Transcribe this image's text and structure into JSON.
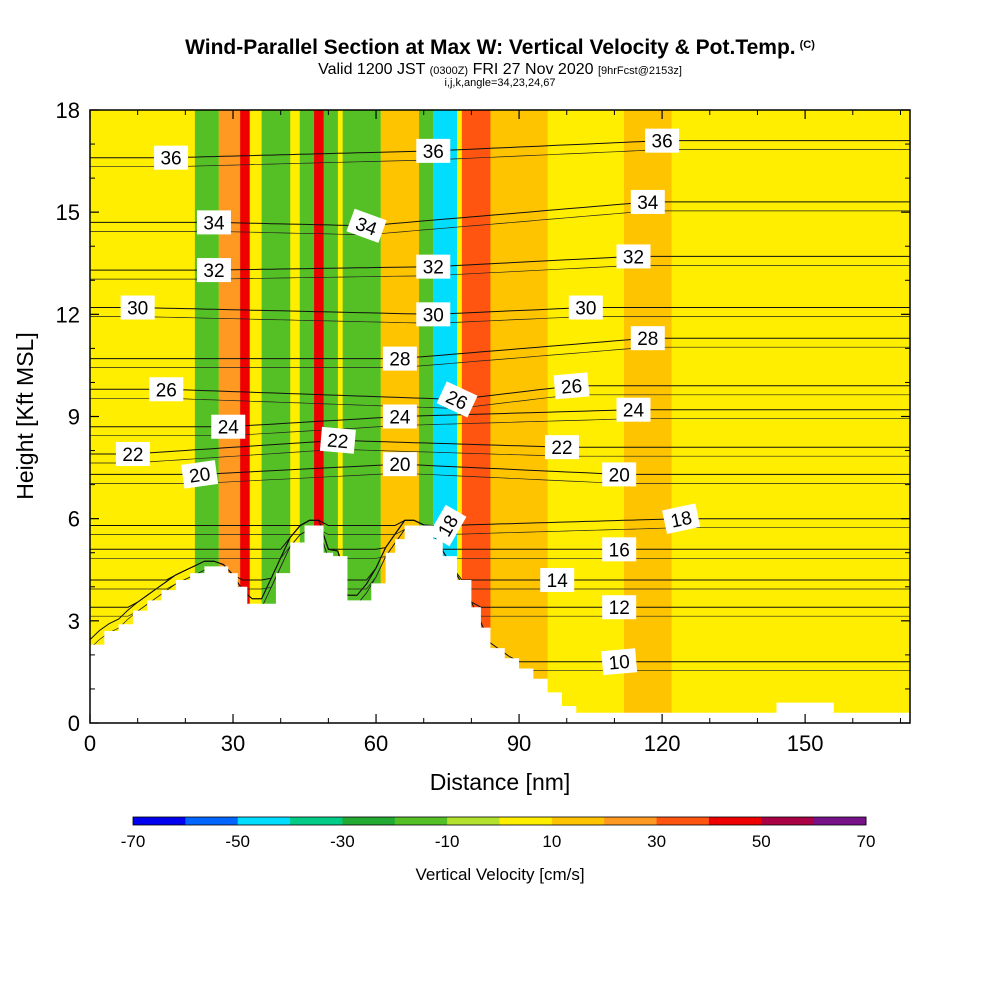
{
  "header": {
    "title": "Wind-Parallel Section at Max W: Vertical Velocity & Pot.Temp.",
    "copyright_mark": "(C)",
    "valid_prefix": "Valid 1200 JST",
    "valid_utc": "(0300Z)",
    "valid_date": "FRI 27 Nov 2020",
    "forecast_tag": "[9hrFcst@2153z]",
    "params_line": "i,j,k,angle=34,23,24,67"
  },
  "chart_data": {
    "type": "heatmap",
    "title": "Wind-Parallel Section at Max W: Vertical Velocity & Pot.Temp.",
    "xlabel": "Distance [nm]",
    "ylabel": "Height [Kft MSL]",
    "xlim": [
      0,
      172
    ],
    "ylim": [
      0,
      18
    ],
    "x_ticks": [
      "0",
      "30",
      "60",
      "90",
      "120",
      "150"
    ],
    "y_ticks": [
      "0",
      "3",
      "6",
      "9",
      "12",
      "15",
      "18"
    ],
    "colorbar": {
      "title": "Vertical Velocity [cm/s]",
      "labels": [
        "-70",
        "-50",
        "-30",
        "-10",
        "10",
        "30",
        "50",
        "70"
      ],
      "colors": [
        "#0000ee",
        "#0066ff",
        "#00ddff",
        "#00cc88",
        "#22aa33",
        "#55c025",
        "#b2e22c",
        "#ffee00",
        "#ffc400",
        "#ff9922",
        "#ff5511",
        "#ee0000",
        "#aa0044",
        "#771188"
      ]
    },
    "vertical_velocity_bands": [
      {
        "x": [
          0,
          172
        ],
        "value": 0
      },
      {
        "x": [
          27,
          33
        ],
        "value": 20
      },
      {
        "x": [
          31.5,
          33.5
        ],
        "value": 45
      },
      {
        "x": [
          22,
          27
        ],
        "value": -20
      },
      {
        "x": [
          36,
          42
        ],
        "value": -20
      },
      {
        "x": [
          44,
          52
        ],
        "value": -15
      },
      {
        "x": [
          47,
          49
        ],
        "value": 40
      },
      {
        "x": [
          53,
          61
        ],
        "value": -20
      },
      {
        "x": [
          61,
          69
        ],
        "value": 15
      },
      {
        "x": [
          69,
          72
        ],
        "value": -15
      },
      {
        "x": [
          72,
          77
        ],
        "value": -45
      },
      {
        "x": [
          78,
          84
        ],
        "value": 35
      },
      {
        "x": [
          84,
          96
        ],
        "value": 15
      },
      {
        "x": [
          112,
          122
        ],
        "value": 15
      }
    ],
    "terrain_kft": {
      "x": [
        0,
        3,
        6,
        9,
        12,
        15,
        18,
        21,
        24,
        27,
        29,
        31,
        33,
        36,
        39,
        42,
        45,
        48,
        49,
        51,
        53,
        54,
        56,
        59,
        62,
        64,
        66,
        69,
        72,
        74,
        77,
        80,
        82,
        84,
        87,
        90,
        93,
        96,
        99,
        102,
        110,
        120,
        130,
        139,
        142,
        144,
        150,
        154,
        156,
        160,
        164,
        172
      ],
      "height": [
        2.3,
        2.7,
        2.9,
        3.3,
        3.6,
        3.9,
        4.2,
        4.4,
        4.6,
        4.6,
        4.4,
        4.0,
        3.5,
        3.5,
        4.4,
        5.3,
        5.8,
        5.8,
        5.0,
        4.9,
        4.9,
        3.6,
        3.6,
        4.1,
        5.0,
        5.4,
        5.8,
        5.8,
        5.4,
        4.9,
        4.2,
        3.4,
        2.8,
        2.2,
        1.9,
        1.6,
        1.3,
        0.9,
        0.5,
        0.3,
        0.3,
        0.3,
        0.3,
        0.3,
        0.3,
        0.6,
        0.6,
        0.6,
        0.3,
        0.3,
        0.3,
        0.3
      ]
    },
    "pot_temp_contours": {
      "levels": [
        10,
        12,
        14,
        16,
        18,
        20,
        22,
        24,
        26,
        28,
        30,
        32,
        34,
        36
      ],
      "labels": [
        {
          "text": "36",
          "x": 17,
          "y": 16.6,
          "angle": 0
        },
        {
          "text": "36",
          "x": 72,
          "y": 16.8,
          "angle": 0
        },
        {
          "text": "36",
          "x": 120,
          "y": 17.1,
          "angle": 0
        },
        {
          "text": "34",
          "x": 26,
          "y": 14.7,
          "angle": 0
        },
        {
          "text": "34",
          "x": 58,
          "y": 14.6,
          "angle": 20
        },
        {
          "text": "34",
          "x": 117,
          "y": 15.3,
          "angle": 0
        },
        {
          "text": "32",
          "x": 26,
          "y": 13.3,
          "angle": 0
        },
        {
          "text": "32",
          "x": 72,
          "y": 13.4,
          "angle": 0
        },
        {
          "text": "32",
          "x": 114,
          "y": 13.7,
          "angle": 0
        },
        {
          "text": "30",
          "x": 10,
          "y": 12.2,
          "angle": 0
        },
        {
          "text": "30",
          "x": 72,
          "y": 12.0,
          "angle": 0
        },
        {
          "text": "30",
          "x": 104,
          "y": 12.2,
          "angle": 0
        },
        {
          "text": "28",
          "x": 65,
          "y": 10.7,
          "angle": 0
        },
        {
          "text": "28",
          "x": 117,
          "y": 11.3,
          "angle": 0
        },
        {
          "text": "26",
          "x": 16,
          "y": 9.8,
          "angle": 0
        },
        {
          "text": "26",
          "x": 77,
          "y": 9.5,
          "angle": 25
        },
        {
          "text": "26",
          "x": 101,
          "y": 9.9,
          "angle": -5
        },
        {
          "text": "24",
          "x": 29,
          "y": 8.7,
          "angle": 0
        },
        {
          "text": "24",
          "x": 65,
          "y": 9.0,
          "angle": 0
        },
        {
          "text": "24",
          "x": 114,
          "y": 9.2,
          "angle": 0
        },
        {
          "text": "22",
          "x": 9,
          "y": 7.9,
          "angle": 0
        },
        {
          "text": "22",
          "x": 52,
          "y": 8.3,
          "angle": 5
        },
        {
          "text": "22",
          "x": 99,
          "y": 8.1,
          "angle": 0
        },
        {
          "text": "20",
          "x": 23,
          "y": 7.3,
          "angle": -8
        },
        {
          "text": "20",
          "x": 65,
          "y": 7.6,
          "angle": 0
        },
        {
          "text": "20",
          "x": 111,
          "y": 7.3,
          "angle": 0
        },
        {
          "text": "18",
          "x": 75,
          "y": 5.8,
          "angle": -60
        },
        {
          "text": "18",
          "x": 124,
          "y": 6.0,
          "angle": -12
        },
        {
          "text": "16",
          "x": 111,
          "y": 5.1,
          "angle": 0
        },
        {
          "text": "14",
          "x": 98,
          "y": 4.2,
          "angle": 0
        },
        {
          "text": "12",
          "x": 111,
          "y": 3.4,
          "angle": 0
        },
        {
          "text": "10",
          "x": 111,
          "y": 1.8,
          "angle": -5
        }
      ]
    }
  }
}
